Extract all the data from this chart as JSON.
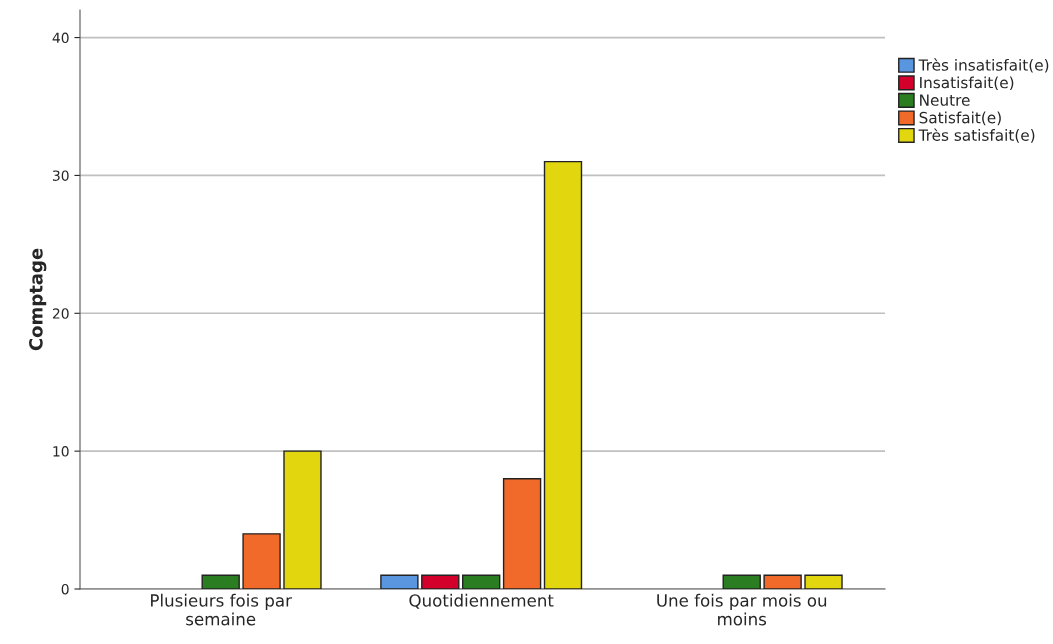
{
  "chart_data": {
    "type": "bar",
    "ylabel": "Comptage",
    "categories": [
      "Plusieurs fois par\nsemaine",
      "Quotidiennement",
      "Une fois par mois ou\nmoins"
    ],
    "series": [
      {
        "name": "Très insatisfait(e)",
        "color": "#5a96e0",
        "values": [
          null,
          1,
          null
        ]
      },
      {
        "name": "Insatisfait(e)",
        "color": "#d4002c",
        "values": [
          null,
          1,
          null
        ]
      },
      {
        "name": "Neutre",
        "color": "#2a7d21",
        "values": [
          1,
          1,
          1
        ]
      },
      {
        "name": "Satisfait(e)",
        "color": "#f26a2a",
        "values": [
          4,
          8,
          1
        ]
      },
      {
        "name": "Très satisfait(e)",
        "color": "#e2d60e",
        "values": [
          10,
          31,
          1
        ]
      }
    ],
    "ylim": [
      0,
      42
    ],
    "yticks": [
      0,
      10,
      20,
      30,
      40
    ],
    "grid": "y",
    "legend": "top right"
  }
}
